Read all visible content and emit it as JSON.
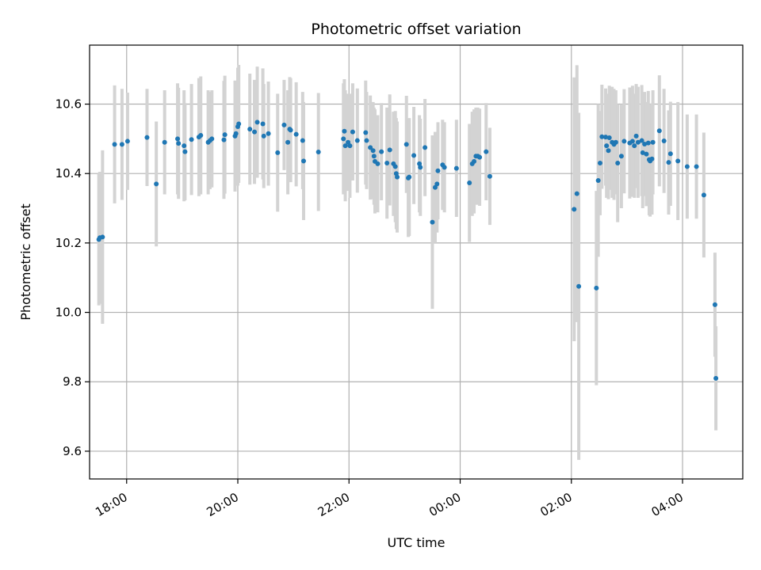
{
  "chart_data": {
    "type": "scatter",
    "title": "Photometric offset variation",
    "xlabel": "UTC time",
    "ylabel": "Photometric offset",
    "x_axis": {
      "kind": "time",
      "range": [
        "17:20",
        "05:05"
      ],
      "ticks": [
        "18:00",
        "20:00",
        "22:00",
        "00:00",
        "02:00",
        "04:00"
      ],
      "tick_rotation": 30
    },
    "y_axis": {
      "range": [
        9.52,
        10.77
      ],
      "ticks": [
        "9.6",
        "9.8",
        "10.0",
        "10.2",
        "10.4",
        "10.6"
      ]
    },
    "grid": true,
    "colors": {
      "point": "#1f77b4",
      "errorbar": "#d3d3d3",
      "grid": "#b0b0b0"
    },
    "series": [
      {
        "points": [
          {
            "t": "17:30",
            "y": 10.21,
            "e": 0.19
          },
          {
            "t": "17:31",
            "y": 10.215,
            "e": 0.19
          },
          {
            "t": "17:34",
            "y": 10.217,
            "e": 0.25
          },
          {
            "t": "17:47",
            "y": 10.484,
            "e": 0.17
          },
          {
            "t": "17:55",
            "y": 10.484,
            "e": 0.16
          },
          {
            "t": "18:01",
            "y": 10.493,
            "e": 0.14
          },
          {
            "t": "18:22",
            "y": 10.504,
            "e": 0.14
          },
          {
            "t": "18:32",
            "y": 10.37,
            "e": 0.18
          },
          {
            "t": "18:41",
            "y": 10.49,
            "e": 0.15
          },
          {
            "t": "18:55",
            "y": 10.5,
            "e": 0.16
          },
          {
            "t": "18:56",
            "y": 10.487,
            "e": 0.16
          },
          {
            "t": "19:02",
            "y": 10.48,
            "e": 0.16
          },
          {
            "t": "19:03",
            "y": 10.463,
            "e": 0.14
          },
          {
            "t": "19:10",
            "y": 10.498,
            "e": 0.16
          },
          {
            "t": "19:18",
            "y": 10.505,
            "e": 0.17
          },
          {
            "t": "19:20",
            "y": 10.51,
            "e": 0.17
          },
          {
            "t": "19:28",
            "y": 10.49,
            "e": 0.15
          },
          {
            "t": "19:30",
            "y": 10.495,
            "e": 0.14
          },
          {
            "t": "19:32",
            "y": 10.5,
            "e": 0.14
          },
          {
            "t": "19:45",
            "y": 10.497,
            "e": 0.17
          },
          {
            "t": "19:46",
            "y": 10.512,
            "e": 0.17
          },
          {
            "t": "19:57",
            "y": 10.508,
            "e": 0.16
          },
          {
            "t": "19:58",
            "y": 10.515,
            "e": 0.15
          },
          {
            "t": "20:00",
            "y": 10.535,
            "e": 0.17
          },
          {
            "t": "20:01",
            "y": 10.543,
            "e": 0.17
          },
          {
            "t": "20:13",
            "y": 10.528,
            "e": 0.16
          },
          {
            "t": "20:18",
            "y": 10.52,
            "e": 0.15
          },
          {
            "t": "20:21",
            "y": 10.548,
            "e": 0.16
          },
          {
            "t": "20:27",
            "y": 10.543,
            "e": 0.16
          },
          {
            "t": "20:28",
            "y": 10.508,
            "e": 0.15
          },
          {
            "t": "20:33",
            "y": 10.515,
            "e": 0.15
          },
          {
            "t": "20:43",
            "y": 10.46,
            "e": 0.17
          },
          {
            "t": "20:50",
            "y": 10.54,
            "e": 0.13
          },
          {
            "t": "20:54",
            "y": 10.49,
            "e": 0.15
          },
          {
            "t": "20:56",
            "y": 10.528,
            "e": 0.15
          },
          {
            "t": "20:57",
            "y": 10.525,
            "e": 0.15
          },
          {
            "t": "21:03",
            "y": 10.513,
            "e": 0.15
          },
          {
            "t": "21:10",
            "y": 10.495,
            "e": 0.14
          },
          {
            "t": "21:11",
            "y": 10.436,
            "e": 0.17
          },
          {
            "t": "21:27",
            "y": 10.462,
            "e": 0.17
          },
          {
            "t": "21:54",
            "y": 10.5,
            "e": 0.16
          },
          {
            "t": "21:55",
            "y": 10.522,
            "e": 0.15
          },
          {
            "t": "21:56",
            "y": 10.48,
            "e": 0.16
          },
          {
            "t": "21:59",
            "y": 10.49,
            "e": 0.14
          },
          {
            "t": "22:01",
            "y": 10.48,
            "e": 0.15
          },
          {
            "t": "22:04",
            "y": 10.52,
            "e": 0.14
          },
          {
            "t": "22:09",
            "y": 10.495,
            "e": 0.15
          },
          {
            "t": "22:18",
            "y": 10.518,
            "e": 0.15
          },
          {
            "t": "22:19",
            "y": 10.495,
            "e": 0.14
          },
          {
            "t": "22:23",
            "y": 10.475,
            "e": 0.15
          },
          {
            "t": "22:26",
            "y": 10.466,
            "e": 0.14
          },
          {
            "t": "22:27",
            "y": 10.45,
            "e": 0.14
          },
          {
            "t": "22:28",
            "y": 10.435,
            "e": 0.15
          },
          {
            "t": "22:31",
            "y": 10.428,
            "e": 0.14
          },
          {
            "t": "22:35",
            "y": 10.463,
            "e": 0.14
          },
          {
            "t": "22:41",
            "y": 10.43,
            "e": 0.16
          },
          {
            "t": "22:44",
            "y": 10.468,
            "e": 0.16
          },
          {
            "t": "22:48",
            "y": 10.428,
            "e": 0.15
          },
          {
            "t": "22:50",
            "y": 10.42,
            "e": 0.16
          },
          {
            "t": "22:51",
            "y": 10.4,
            "e": 0.16
          },
          {
            "t": "22:52",
            "y": 10.39,
            "e": 0.16
          },
          {
            "t": "23:02",
            "y": 10.484,
            "e": 0.14
          },
          {
            "t": "23:04",
            "y": 10.387,
            "e": 0.17
          },
          {
            "t": "23:05",
            "y": 10.39,
            "e": 0.17
          },
          {
            "t": "23:10",
            "y": 10.452,
            "e": 0.14
          },
          {
            "t": "23:16",
            "y": 10.428,
            "e": 0.14
          },
          {
            "t": "23:17",
            "y": 10.418,
            "e": 0.14
          },
          {
            "t": "23:22",
            "y": 10.475,
            "e": 0.14
          },
          {
            "t": "23:30",
            "y": 10.26,
            "e": 0.25
          },
          {
            "t": "23:33",
            "y": 10.36,
            "e": 0.16
          },
          {
            "t": "23:35",
            "y": 10.37,
            "e": 0.14
          },
          {
            "t": "23:36",
            "y": 10.408,
            "e": 0.14
          },
          {
            "t": "23:41",
            "y": 10.425,
            "e": 0.13
          },
          {
            "t": "23:43",
            "y": 10.418,
            "e": 0.13
          },
          {
            "t": "23:56",
            "y": 10.415,
            "e": 0.14
          },
          {
            "t": "00:10",
            "y": 10.373,
            "e": 0.17
          },
          {
            "t": "00:13",
            "y": 10.428,
            "e": 0.15
          },
          {
            "t": "00:15",
            "y": 10.435,
            "e": 0.15
          },
          {
            "t": "00:17",
            "y": 10.45,
            "e": 0.14
          },
          {
            "t": "00:19",
            "y": 10.45,
            "e": 0.14
          },
          {
            "t": "00:21",
            "y": 10.447,
            "e": 0.14
          },
          {
            "t": "00:28",
            "y": 10.463,
            "e": 0.14
          },
          {
            "t": "00:32",
            "y": 10.392,
            "e": 0.14
          },
          {
            "t": "02:03",
            "y": 10.297,
            "e": 0.38
          },
          {
            "t": "02:06",
            "y": 10.342,
            "e": 0.37
          },
          {
            "t": "02:08",
            "y": 10.075,
            "e": 0.5
          },
          {
            "t": "02:27",
            "y": 10.07,
            "e": 0.28
          },
          {
            "t": "02:29",
            "y": 10.38,
            "e": 0.22
          },
          {
            "t": "02:31",
            "y": 10.43,
            "e": 0.15
          },
          {
            "t": "02:33",
            "y": 10.506,
            "e": 0.15
          },
          {
            "t": "02:37",
            "y": 10.505,
            "e": 0.14
          },
          {
            "t": "02:38",
            "y": 10.48,
            "e": 0.15
          },
          {
            "t": "02:40",
            "y": 10.466,
            "e": 0.14
          },
          {
            "t": "02:41",
            "y": 10.503,
            "e": 0.15
          },
          {
            "t": "02:44",
            "y": 10.49,
            "e": 0.16
          },
          {
            "t": "02:46",
            "y": 10.484,
            "e": 0.16
          },
          {
            "t": "02:48",
            "y": 10.49,
            "e": 0.15
          },
          {
            "t": "02:50",
            "y": 10.43,
            "e": 0.17
          },
          {
            "t": "02:54",
            "y": 10.45,
            "e": 0.15
          },
          {
            "t": "02:57",
            "y": 10.493,
            "e": 0.15
          },
          {
            "t": "03:03",
            "y": 10.488,
            "e": 0.16
          },
          {
            "t": "03:06",
            "y": 10.493,
            "e": 0.16
          },
          {
            "t": "03:08",
            "y": 10.48,
            "e": 0.15
          },
          {
            "t": "03:10",
            "y": 10.508,
            "e": 0.15
          },
          {
            "t": "03:12",
            "y": 10.49,
            "e": 0.16
          },
          {
            "t": "03:16",
            "y": 10.495,
            "e": 0.16
          },
          {
            "t": "03:17",
            "y": 10.46,
            "e": 0.16
          },
          {
            "t": "03:19",
            "y": 10.485,
            "e": 0.15
          },
          {
            "t": "03:21",
            "y": 10.456,
            "e": 0.15
          },
          {
            "t": "03:23",
            "y": 10.488,
            "e": 0.15
          },
          {
            "t": "03:24",
            "y": 10.44,
            "e": 0.16
          },
          {
            "t": "03:25",
            "y": 10.436,
            "e": 0.16
          },
          {
            "t": "03:27",
            "y": 10.442,
            "e": 0.16
          },
          {
            "t": "03:28",
            "y": 10.49,
            "e": 0.15
          },
          {
            "t": "03:35",
            "y": 10.523,
            "e": 0.16
          },
          {
            "t": "03:40",
            "y": 10.494,
            "e": 0.15
          },
          {
            "t": "03:45",
            "y": 10.432,
            "e": 0.15
          },
          {
            "t": "03:47",
            "y": 10.457,
            "e": 0.15
          },
          {
            "t": "03:55",
            "y": 10.436,
            "e": 0.17
          },
          {
            "t": "04:05",
            "y": 10.42,
            "e": 0.15
          },
          {
            "t": "04:15",
            "y": 10.42,
            "e": 0.15
          },
          {
            "t": "04:23",
            "y": 10.338,
            "e": 0.18
          },
          {
            "t": "04:35",
            "y": 10.022,
            "e": 0.15
          },
          {
            "t": "04:36",
            "y": 9.81,
            "e": 0.15
          }
        ]
      }
    ]
  }
}
